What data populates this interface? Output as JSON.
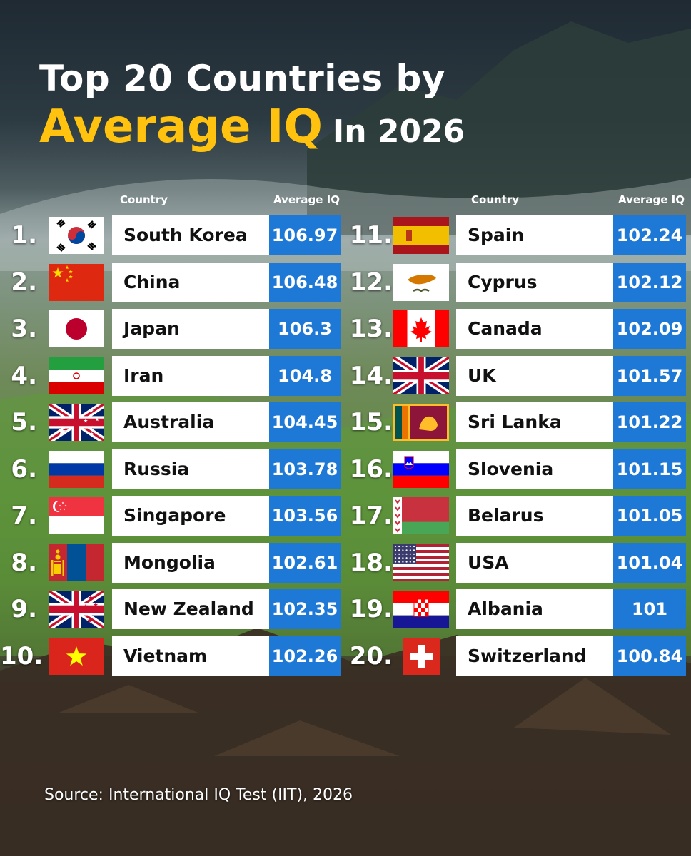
{
  "title": {
    "line1": "Top 20 Countries by",
    "accent": "Average IQ",
    "suffix": "In 2026"
  },
  "headers": {
    "country": "Country",
    "value": "Average IQ"
  },
  "source": "Source: International IQ Test (IIT), 2026",
  "colors": {
    "accent": "#ffc20e",
    "value_box": "#1e78d6",
    "name_box": "#ffffff"
  },
  "chart_data": {
    "type": "table",
    "title": "Top 20 Countries by Average IQ In 2026",
    "columns": [
      "Country",
      "Average IQ"
    ],
    "rows": [
      {
        "rank": "1.",
        "country": "South Korea",
        "value": "106.97",
        "flag": "south-korea-flag"
      },
      {
        "rank": "2.",
        "country": "China",
        "value": "106.48",
        "flag": "china-flag"
      },
      {
        "rank": "3.",
        "country": "Japan",
        "value": "106.3",
        "flag": "japan-flag"
      },
      {
        "rank": "4.",
        "country": "Iran",
        "value": "104.8",
        "flag": "iran-flag"
      },
      {
        "rank": "5.",
        "country": "Australia",
        "value": "104.45",
        "flag": "australia-flag"
      },
      {
        "rank": "6.",
        "country": "Russia",
        "value": "103.78",
        "flag": "russia-flag"
      },
      {
        "rank": "7.",
        "country": "Singapore",
        "value": "103.56",
        "flag": "singapore-flag"
      },
      {
        "rank": "8.",
        "country": "Mongolia",
        "value": "102.61",
        "flag": "mongolia-flag"
      },
      {
        "rank": "9.",
        "country": "New Zealand",
        "value": "102.35",
        "flag": "new-zealand-flag"
      },
      {
        "rank": "10.",
        "country": "Vietnam",
        "value": "102.26",
        "flag": "vietnam-flag"
      },
      {
        "rank": "11.",
        "country": "Spain",
        "value": "102.24",
        "flag": "spain-flag"
      },
      {
        "rank": "12.",
        "country": "Cyprus",
        "value": "102.12",
        "flag": "cyprus-flag"
      },
      {
        "rank": "13.",
        "country": "Canada",
        "value": "102.09",
        "flag": "canada-flag"
      },
      {
        "rank": "14.",
        "country": "UK",
        "value": "101.57",
        "flag": "uk-flag"
      },
      {
        "rank": "15.",
        "country": "Sri Lanka",
        "value": "101.22",
        "flag": "sri-lanka-flag"
      },
      {
        "rank": "16.",
        "country": "Slovenia",
        "value": "101.15",
        "flag": "slovenia-flag"
      },
      {
        "rank": "17.",
        "country": "Belarus",
        "value": "101.05",
        "flag": "belarus-flag"
      },
      {
        "rank": "18.",
        "country": "USA",
        "value": "101.04",
        "flag": "usa-flag"
      },
      {
        "rank": "19.",
        "country": "Albania",
        "value": "101",
        "flag": "croatia-flag"
      },
      {
        "rank": "20.",
        "country": "Switzerland",
        "value": "100.84",
        "flag": "switzerland-flag"
      }
    ]
  }
}
